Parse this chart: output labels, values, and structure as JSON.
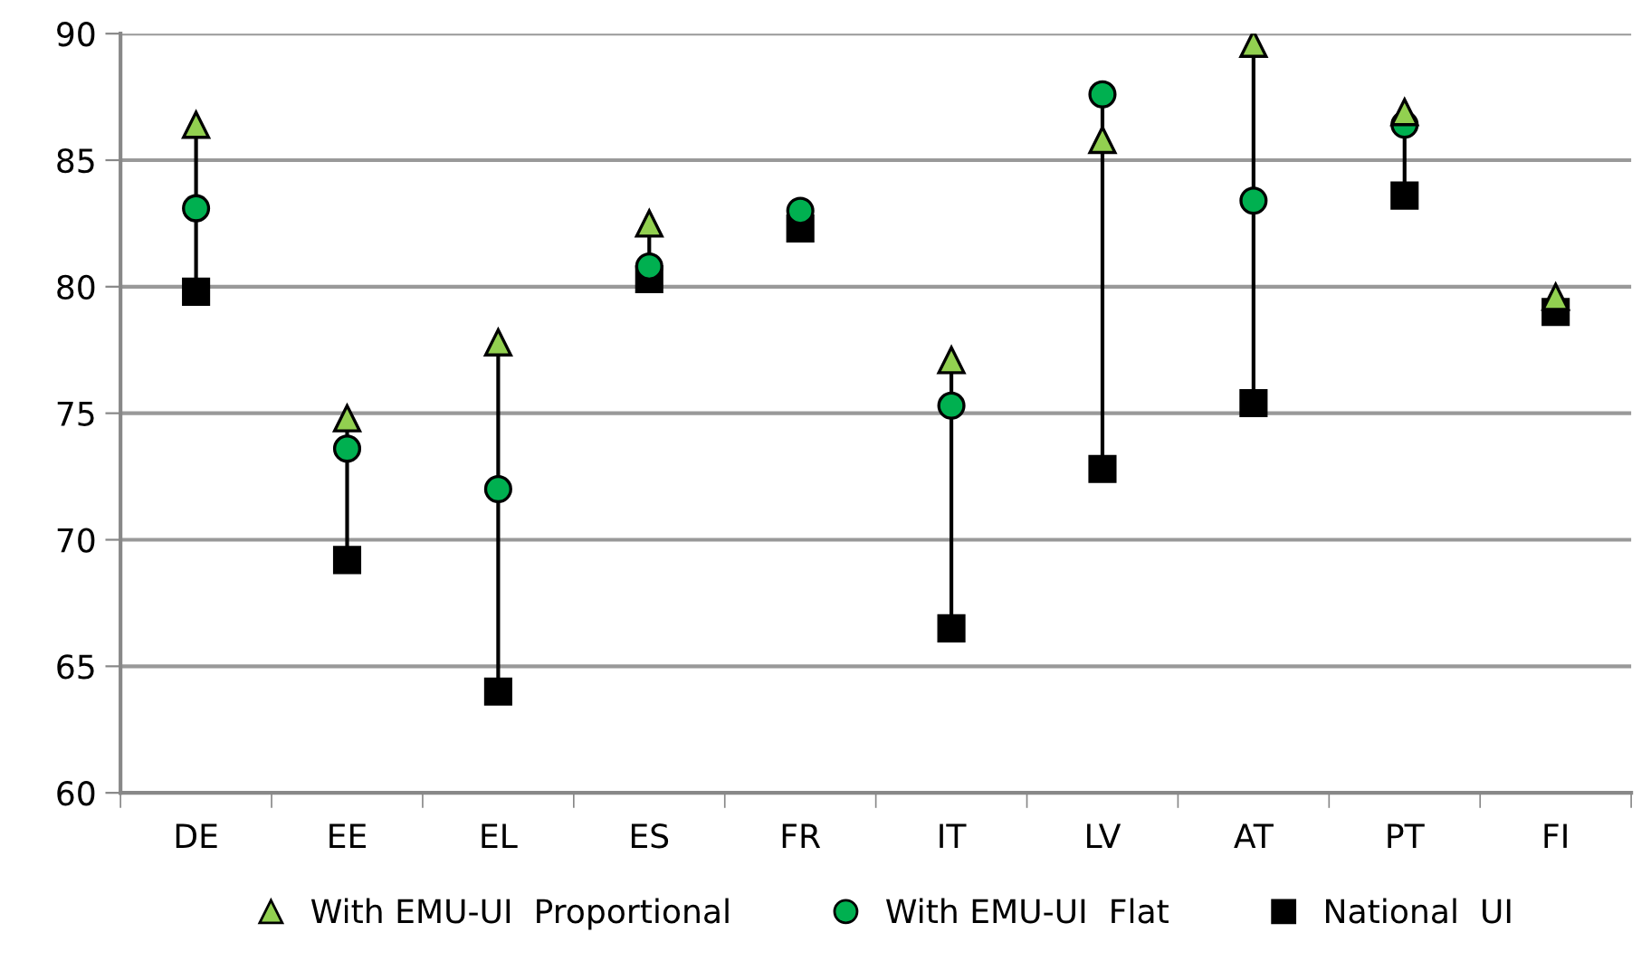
{
  "chart_data": {
    "type": "scatter",
    "categories": [
      "DE",
      "EE",
      "EL",
      "ES",
      "FR",
      "IT",
      "LV",
      "AT",
      "PT",
      "FI"
    ],
    "ylim": [
      60,
      90
    ],
    "yticks": [
      60,
      65,
      70,
      75,
      80,
      85,
      90
    ],
    "grid": "y",
    "legend": "bottom",
    "series": [
      {
        "name": "With EMU-UI  Proportional",
        "color": "#92d050",
        "marker": "triangle",
        "values": [
          86.4,
          74.8,
          77.8,
          82.5,
          null,
          77.1,
          85.8,
          89.6,
          86.9,
          79.6
        ]
      },
      {
        "name": "With EMU-UI  Flat",
        "color": "#00b050",
        "marker": "circle",
        "values": [
          83.1,
          73.6,
          72.0,
          80.8,
          83.0,
          75.3,
          87.6,
          83.4,
          86.4,
          null
        ]
      },
      {
        "name": "National  UI",
        "color": "#000000",
        "marker": "square",
        "values": [
          79.8,
          69.2,
          64.0,
          80.3,
          82.3,
          66.5,
          72.8,
          75.4,
          83.6,
          79.0
        ]
      }
    ]
  }
}
